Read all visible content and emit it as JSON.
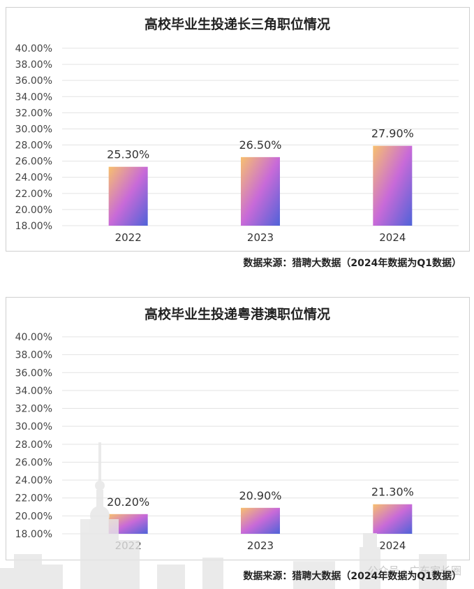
{
  "colors": {
    "bar_top": "#f7c06e",
    "bar_mid": "#c86ad8",
    "bar_bottom": "#4f63d8",
    "grid": "#e3e3e3"
  },
  "charts": [
    {
      "source": "数据来源：猎聘大数据（2024年数据为Q1数据）",
      "chart_data": {
        "type": "bar",
        "title": "高校毕业生投递长三角职位情况",
        "categories": [
          "2022",
          "2023",
          "2024"
        ],
        "values": [
          25.3,
          26.5,
          27.9
        ],
        "value_labels": [
          "25.30%",
          "26.50%",
          "27.90%"
        ],
        "ylim": [
          18,
          40
        ],
        "yticks": [
          "18.00%",
          "20.00%",
          "22.00%",
          "24.00%",
          "26.00%",
          "28.00%",
          "30.00%",
          "32.00%",
          "34.00%",
          "36.00%",
          "38.00%",
          "40.00%"
        ],
        "grid": true
      }
    },
    {
      "source": "数据来源：猎聘大数据（2024年数据为Q1数据）",
      "chart_data": {
        "type": "bar",
        "title": "高校毕业生投递粤港澳职位情况",
        "categories": [
          "2022",
          "2023",
          "2024"
        ],
        "values": [
          20.2,
          20.9,
          21.3
        ],
        "value_labels": [
          "20.20%",
          "20.90%",
          "21.30%"
        ],
        "ylim": [
          18,
          40
        ],
        "yticks": [
          "18.00%",
          "20.00%",
          "22.00%",
          "24.00%",
          "26.00%",
          "28.00%",
          "30.00%",
          "32.00%",
          "34.00%",
          "36.00%",
          "38.00%",
          "40.00%"
        ],
        "grid": true
      }
    }
  ],
  "watermark": "公众号 · 广东家长圈"
}
